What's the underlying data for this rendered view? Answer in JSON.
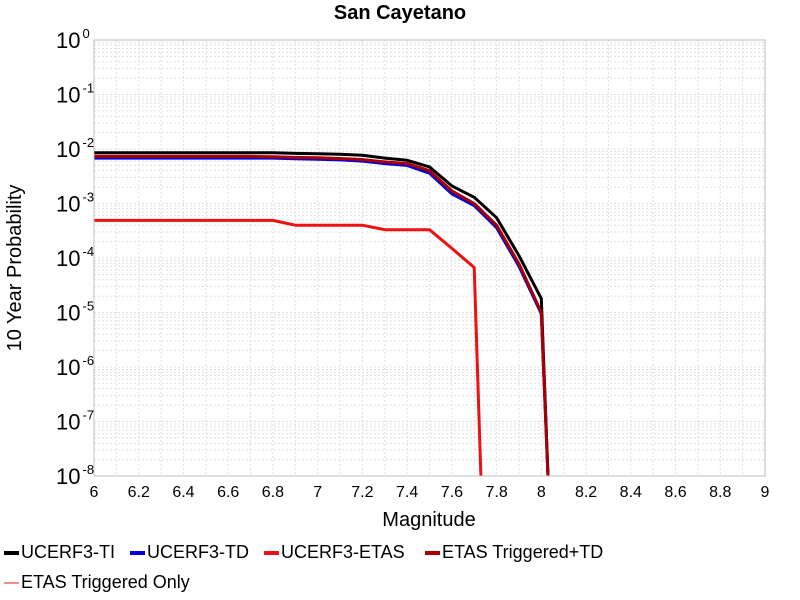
{
  "chart_data": {
    "type": "line",
    "title": "San Cayetano",
    "xlabel": "Magnitude",
    "ylabel": "10 Year Probability",
    "xlim": [
      6,
      9
    ],
    "ylim": [
      1e-08,
      1
    ],
    "yscale": "log",
    "grid": true,
    "legend_position": "bottom",
    "x_ticks": [
      "6",
      "6.2",
      "6.4",
      "6.6",
      "6.8",
      "7",
      "7.2",
      "7.4",
      "7.6",
      "7.8",
      "8",
      "8.2",
      "8.4",
      "8.6",
      "8.8",
      "9"
    ],
    "y_ticks": [
      {
        "base": "10",
        "exp": "0",
        "value": 1
      },
      {
        "base": "10",
        "exp": "-1",
        "value": 0.1
      },
      {
        "base": "10",
        "exp": "-2",
        "value": 0.01
      },
      {
        "base": "10",
        "exp": "-3",
        "value": 0.001
      },
      {
        "base": "10",
        "exp": "-4",
        "value": 0.0001
      },
      {
        "base": "10",
        "exp": "-5",
        "value": 1e-05
      },
      {
        "base": "10",
        "exp": "-6",
        "value": 1e-06
      },
      {
        "base": "10",
        "exp": "-7",
        "value": 1e-07
      },
      {
        "base": "10",
        "exp": "-8",
        "value": 1e-08
      }
    ],
    "series": [
      {
        "name": "UCERF3-TI",
        "color": "#000000",
        "x": [
          6.0,
          6.1,
          6.2,
          6.3,
          6.4,
          6.5,
          6.6,
          6.7,
          6.8,
          6.9,
          7.0,
          7.1,
          7.2,
          7.3,
          7.4,
          7.5,
          7.6,
          7.7,
          7.8,
          7.9,
          8.0,
          8.03
        ],
        "y": [
          0.0085,
          0.0085,
          0.0085,
          0.0085,
          0.0085,
          0.0085,
          0.0085,
          0.0085,
          0.0085,
          0.0083,
          0.0082,
          0.008,
          0.0077,
          0.0068,
          0.0062,
          0.0047,
          0.0021,
          0.0013,
          0.00055,
          0.00011,
          1.8e-05,
          1e-08
        ]
      },
      {
        "name": "UCERF3-TD",
        "color": "#0000dd",
        "x": [
          6.0,
          6.1,
          6.2,
          6.3,
          6.4,
          6.5,
          6.6,
          6.7,
          6.8,
          6.9,
          7.0,
          7.1,
          7.2,
          7.3,
          7.4,
          7.5,
          7.6,
          7.7,
          7.8,
          7.9,
          8.0,
          8.03
        ],
        "y": [
          0.0068,
          0.0068,
          0.0068,
          0.0068,
          0.0068,
          0.0068,
          0.0068,
          0.0068,
          0.0068,
          0.0066,
          0.0065,
          0.0063,
          0.006,
          0.0054,
          0.005,
          0.0036,
          0.0015,
          0.00092,
          0.00036,
          7e-05,
          9.5e-06,
          1e-08
        ]
      },
      {
        "name": "UCERF3-ETAS",
        "color": "#ee1111",
        "x": [
          6.0,
          6.1,
          6.2,
          6.3,
          6.4,
          6.5,
          6.6,
          6.7,
          6.8,
          6.9,
          7.0,
          7.1,
          7.2,
          7.3,
          7.4,
          7.5,
          7.6,
          7.7,
          7.73
        ],
        "y": [
          0.00049,
          0.00049,
          0.00049,
          0.00049,
          0.00049,
          0.00049,
          0.00049,
          0.00049,
          0.00049,
          0.0004,
          0.0004,
          0.0004,
          0.0004,
          0.00033,
          0.00033,
          0.00033,
          0.00015,
          6.7e-05,
          1e-08
        ]
      },
      {
        "name": "ETAS Triggered+TD",
        "color": "#a80000",
        "x": [
          6.0,
          6.1,
          6.2,
          6.3,
          6.4,
          6.5,
          6.6,
          6.7,
          6.8,
          6.9,
          7.0,
          7.1,
          7.2,
          7.3,
          7.4,
          7.5,
          7.6,
          7.7,
          7.8,
          7.9,
          8.0,
          8.03
        ],
        "y": [
          0.0073,
          0.0073,
          0.0073,
          0.0073,
          0.0073,
          0.0073,
          0.0073,
          0.0073,
          0.0072,
          0.007,
          0.0069,
          0.0067,
          0.0064,
          0.0058,
          0.0054,
          0.004,
          0.0017,
          0.001,
          0.0004,
          7.8e-05,
          1e-05,
          1e-08
        ]
      },
      {
        "name": "ETAS Triggered Only",
        "color": "#f28c8c",
        "x": [],
        "y": []
      }
    ]
  }
}
